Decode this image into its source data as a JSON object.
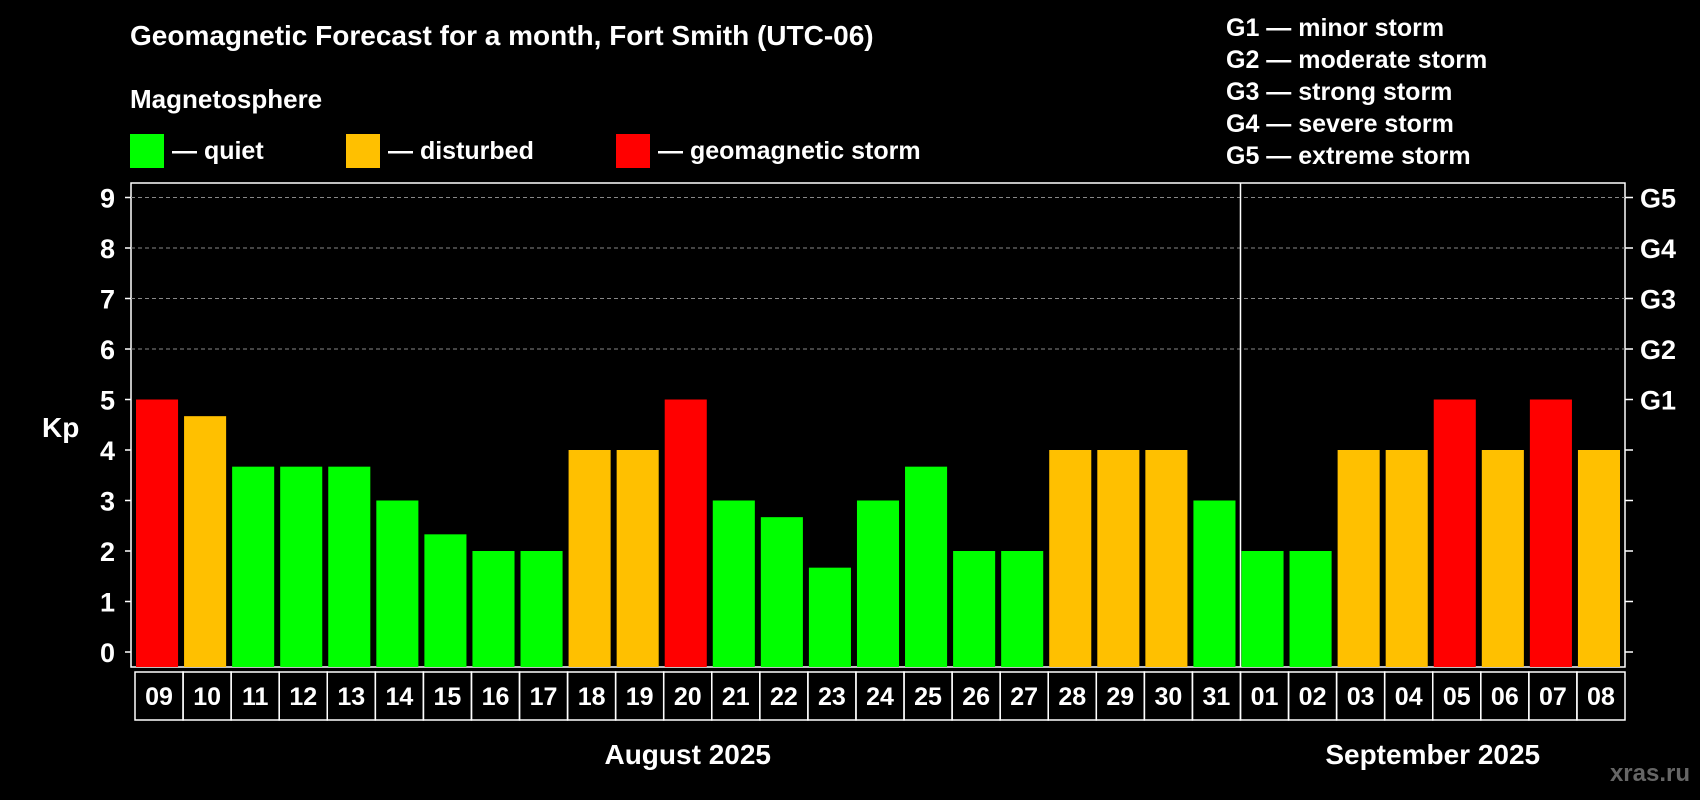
{
  "chart_data": {
    "type": "bar",
    "title": "Geomagnetic Forecast for a month, Fort Smith (UTC-06)",
    "subtitle": "Magnetosphere",
    "ylabel": "Kp",
    "ylim": [
      0,
      9
    ],
    "yticks": [
      "0",
      "1",
      "2",
      "3",
      "4",
      "5",
      "6",
      "7",
      "8",
      "9"
    ],
    "right_ticks": [
      {
        "kp": 5,
        "label": "G1"
      },
      {
        "kp": 6,
        "label": "G2"
      },
      {
        "kp": 7,
        "label": "G3"
      },
      {
        "kp": 8,
        "label": "G4"
      },
      {
        "kp": 9,
        "label": "G5"
      }
    ],
    "categories": [
      "09",
      "10",
      "11",
      "12",
      "13",
      "14",
      "15",
      "16",
      "17",
      "18",
      "19",
      "20",
      "21",
      "22",
      "23",
      "24",
      "25",
      "26",
      "27",
      "28",
      "29",
      "30",
      "31",
      "01",
      "02",
      "03",
      "04",
      "05",
      "06",
      "07",
      "08"
    ],
    "values": [
      5,
      4.67,
      3.67,
      3.67,
      3.67,
      3,
      2.33,
      2,
      2,
      4,
      4,
      5,
      3,
      2.67,
      1.67,
      3,
      3.67,
      2,
      2,
      4,
      4,
      4,
      3,
      2,
      2,
      4,
      4,
      5,
      4,
      5,
      4
    ],
    "levels": [
      "storm",
      "disturbed",
      "quiet",
      "quiet",
      "quiet",
      "quiet",
      "quiet",
      "quiet",
      "quiet",
      "disturbed",
      "disturbed",
      "storm",
      "quiet",
      "quiet",
      "quiet",
      "quiet",
      "quiet",
      "quiet",
      "quiet",
      "disturbed",
      "disturbed",
      "disturbed",
      "quiet",
      "quiet",
      "quiet",
      "disturbed",
      "disturbed",
      "storm",
      "disturbed",
      "storm",
      "disturbed"
    ],
    "months": [
      {
        "label": "August 2025",
        "start": 0,
        "end": 22
      },
      {
        "label": "September 2025",
        "start": 23,
        "end": 30
      }
    ],
    "grid": true
  },
  "colors": {
    "quiet": "#00ff00",
    "disturbed": "#ffc000",
    "storm": "#ff0000",
    "background": "#000000",
    "axis": "#ffffff",
    "grid": "#888888"
  },
  "legend": [
    {
      "key": "quiet",
      "label": "— quiet"
    },
    {
      "key": "disturbed",
      "label": "— disturbed"
    },
    {
      "key": "storm",
      "label": "— geomagnetic storm"
    }
  ],
  "g_legend": [
    "G1 — minor storm",
    "G2 — moderate storm",
    "G3 — strong storm",
    "G4 — severe storm",
    "G5 — extreme storm"
  ],
  "watermark": "xras.ru"
}
